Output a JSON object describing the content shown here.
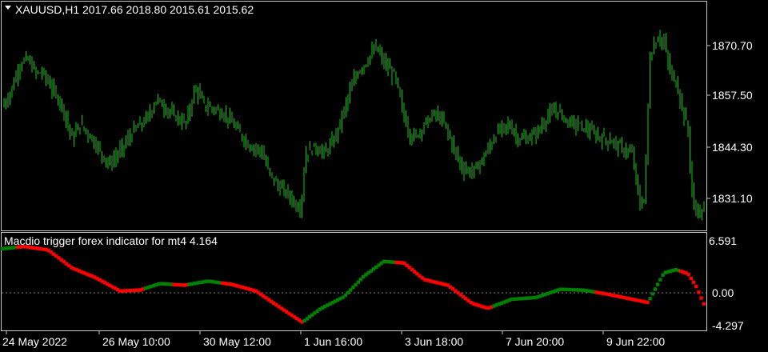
{
  "colors": {
    "background": "#000000",
    "frame": "#c8c8c8",
    "candle": "#00d000",
    "bull_dot": "#008000",
    "bear_dot": "#ff0000",
    "text": "#ffffff",
    "zero_line": "#808080"
  },
  "main_panel": {
    "dropdown_icon": "triangle-down-icon",
    "title": "XAUUSD,H1  2017.66 2018.80 2015.61 2015.62",
    "price_labels": [
      "1870.70",
      "1857.50",
      "1844.30",
      "1831.10"
    ]
  },
  "indicator_panel": {
    "title": "Macdio trigger forex indicator for mt4 4.164",
    "value_labels": [
      "6.591",
      "0.00",
      "-4.297"
    ]
  },
  "time_axis": {
    "labels": [
      "24 May 2022",
      "26 May 10:00",
      "30 May 12:00",
      "1 Jun 16:00",
      "3 Jun 18:00",
      "7 Jun 20:00",
      "9 Jun 22:00"
    ]
  },
  "chart_data": [
    {
      "type": "candlestick",
      "title": "XAUUSD,H1  2017.66 2018.80 2015.61 2015.62",
      "ylim": [
        1823.5,
        1885.0
      ],
      "y_ticks": [
        1870.7,
        1857.5,
        1844.3,
        1831.1
      ],
      "x_tick_labels": [
        "24 May 2022",
        "26 May 10:00",
        "30 May 12:00",
        "1 Jun 16:00",
        "3 Jun 18:00",
        "7 Jun 20:00",
        "9 Jun 22:00"
      ],
      "close_path": [
        [
          0,
          1856
        ],
        [
          12,
          1860
        ],
        [
          24,
          1868
        ],
        [
          34,
          1870
        ],
        [
          44,
          1866
        ],
        [
          54,
          1866
        ],
        [
          64,
          1862
        ],
        [
          78,
          1857
        ],
        [
          90,
          1848
        ],
        [
          100,
          1852
        ],
        [
          112,
          1849
        ],
        [
          124,
          1845
        ],
        [
          136,
          1841
        ],
        [
          148,
          1844
        ],
        [
          160,
          1848
        ],
        [
          170,
          1851
        ],
        [
          182,
          1853
        ],
        [
          196,
          1859
        ],
        [
          208,
          1856
        ],
        [
          220,
          1854
        ],
        [
          232,
          1852
        ],
        [
          244,
          1862
        ],
        [
          256,
          1857
        ],
        [
          270,
          1856
        ],
        [
          284,
          1854
        ],
        [
          298,
          1850
        ],
        [
          312,
          1846
        ],
        [
          326,
          1845
        ],
        [
          336,
          1839
        ],
        [
          348,
          1835
        ],
        [
          360,
          1833
        ],
        [
          370,
          1830
        ],
        [
          376,
          1829
        ],
        [
          382,
          1844
        ],
        [
          394,
          1846
        ],
        [
          404,
          1844
        ],
        [
          416,
          1847
        ],
        [
          426,
          1853
        ],
        [
          436,
          1860
        ],
        [
          446,
          1866
        ],
        [
          458,
          1869
        ],
        [
          470,
          1873
        ],
        [
          482,
          1868
        ],
        [
          494,
          1865
        ],
        [
          504,
          1855
        ],
        [
          514,
          1848
        ],
        [
          524,
          1850
        ],
        [
          534,
          1853
        ],
        [
          544,
          1855
        ],
        [
          556,
          1852
        ],
        [
          568,
          1845
        ],
        [
          578,
          1840
        ],
        [
          590,
          1839
        ],
        [
          602,
          1842
        ],
        [
          612,
          1846
        ],
        [
          622,
          1850
        ],
        [
          636,
          1852
        ],
        [
          648,
          1848
        ],
        [
          660,
          1848
        ],
        [
          672,
          1850
        ],
        [
          684,
          1854
        ],
        [
          696,
          1856
        ],
        [
          708,
          1853
        ],
        [
          720,
          1852
        ],
        [
          732,
          1851
        ],
        [
          744,
          1849
        ],
        [
          756,
          1848
        ],
        [
          768,
          1847
        ],
        [
          780,
          1845
        ],
        [
          790,
          1844
        ],
        [
          800,
          1830
        ],
        [
          806,
          1832
        ],
        [
          812,
          1870
        ],
        [
          822,
          1876
        ],
        [
          830,
          1874
        ],
        [
          838,
          1866
        ],
        [
          846,
          1863
        ],
        [
          852,
          1857
        ],
        [
          860,
          1850
        ],
        [
          866,
          1830
        ],
        [
          874,
          1828
        ],
        [
          880,
          1828
        ]
      ]
    },
    {
      "type": "scatter",
      "title": "Macdio trigger forex indicator for mt4 4.164",
      "ylim": [
        -4.297,
        6.591
      ],
      "y_ticks": [
        6.591,
        0.0,
        -4.297
      ],
      "series": [
        {
          "values": [
            [
              0,
              5.3
            ],
            [
              30,
              5.6
            ],
            [
              60,
              5.2
            ],
            [
              90,
              3.0
            ],
            [
              120,
              1.8
            ],
            [
              150,
              0.2
            ],
            [
              175,
              0.3
            ],
            [
              200,
              1.1
            ],
            [
              230,
              0.9
            ],
            [
              260,
              1.4
            ],
            [
              290,
              1.0
            ],
            [
              320,
              0.2
            ],
            [
              350,
              -1.8
            ],
            [
              378,
              -3.6
            ],
            [
              400,
              -2.0
            ],
            [
              430,
              -0.5
            ],
            [
              455,
              2.0
            ],
            [
              480,
              3.8
            ],
            [
              505,
              3.6
            ],
            [
              530,
              1.6
            ],
            [
              560,
              0.9
            ],
            [
              590,
              -1.3
            ],
            [
              610,
              -1.9
            ],
            [
              640,
              -0.8
            ],
            [
              670,
              -0.6
            ],
            [
              700,
              0.4
            ],
            [
              730,
              0.3
            ],
            [
              760,
              -0.2
            ],
            [
              790,
              -0.8
            ],
            [
              810,
              -1.2
            ],
            [
              830,
              2.4
            ],
            [
              845,
              2.8
            ],
            [
              860,
              2.3
            ],
            [
              870,
              0.8
            ],
            [
              880,
              -1.4
            ]
          ],
          "color_runs": [
            [
              0,
              20,
              "bull"
            ],
            [
              20,
              180,
              "bear"
            ],
            [
              180,
              215,
              "bull"
            ],
            [
              215,
              235,
              "bear"
            ],
            [
              235,
              275,
              "bull"
            ],
            [
              275,
              380,
              "bear"
            ],
            [
              380,
              495,
              "bull"
            ],
            [
              495,
              615,
              "bear"
            ],
            [
              615,
              640,
              "bull"
            ],
            [
              640,
              690,
              "bull"
            ],
            [
              690,
              745,
              "bull"
            ],
            [
              745,
              810,
              "bear"
            ],
            [
              810,
              850,
              "bull"
            ],
            [
              850,
              880,
              "bear"
            ]
          ]
        }
      ]
    }
  ]
}
